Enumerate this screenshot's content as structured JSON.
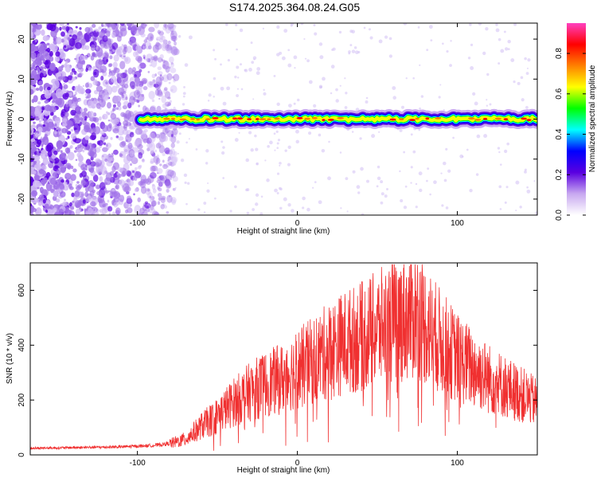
{
  "figure": {
    "title": "S174.2025.364.08.24.G05"
  },
  "chart_data": [
    {
      "type": "heatmap",
      "xlabel": "Height of straight line (km)",
      "ylabel": "Frequency (Hz)",
      "xlim": [
        -167,
        150
      ],
      "ylim": [
        -24,
        24
      ],
      "xticks": [
        -100,
        0,
        100
      ],
      "yticks": [
        -20,
        -10,
        0,
        10,
        20
      ],
      "noise_region": {
        "x_start": -167,
        "x_end": -80,
        "y_range": [
          -24,
          24
        ]
      },
      "signal_ridge": {
        "x_start": -98,
        "x_end": 150,
        "frequency": 0,
        "halfwidth_hz": 1
      },
      "colorbar": {
        "label": "Normalized spectral amplitude",
        "range": [
          0,
          0.95
        ],
        "ticks": [
          0.0,
          0.2,
          0.4,
          0.6,
          0.8
        ],
        "tick_labels": [
          "0.0",
          "0.2",
          "0.4",
          "0.6",
          "0.8"
        ],
        "colors": [
          "#ffffff",
          "#c8a8f0",
          "#5a00e0",
          "#0000ff",
          "#00ffff",
          "#00ff00",
          "#ffff00",
          "#ff8000",
          "#ff0000",
          "#ff40c0"
        ]
      }
    },
    {
      "type": "line",
      "xlabel": "Height of straight line (km)",
      "ylabel": "SNR (10 * v/v)",
      "xlim": [
        -167,
        150
      ],
      "ylim": [
        0,
        700
      ],
      "xticks": [
        -100,
        0,
        100
      ],
      "yticks": [
        0,
        200,
        400,
        600
      ],
      "color": "#f03030",
      "series": [
        {
          "x": [
            -167,
            -140,
            -110,
            -90,
            -80,
            -70,
            -60,
            -50,
            -40,
            -30,
            -20,
            -10,
            0,
            10,
            20,
            30,
            40,
            50,
            60,
            70,
            75,
            80,
            90,
            100,
            110,
            120,
            130,
            140,
            150
          ],
          "values": [
            25,
            27,
            30,
            35,
            42,
            60,
            110,
            150,
            200,
            240,
            270,
            290,
            330,
            360,
            400,
            430,
            450,
            480,
            510,
            530,
            540,
            500,
            430,
            370,
            330,
            290,
            260,
            230,
            200
          ]
        }
      ]
    }
  ]
}
